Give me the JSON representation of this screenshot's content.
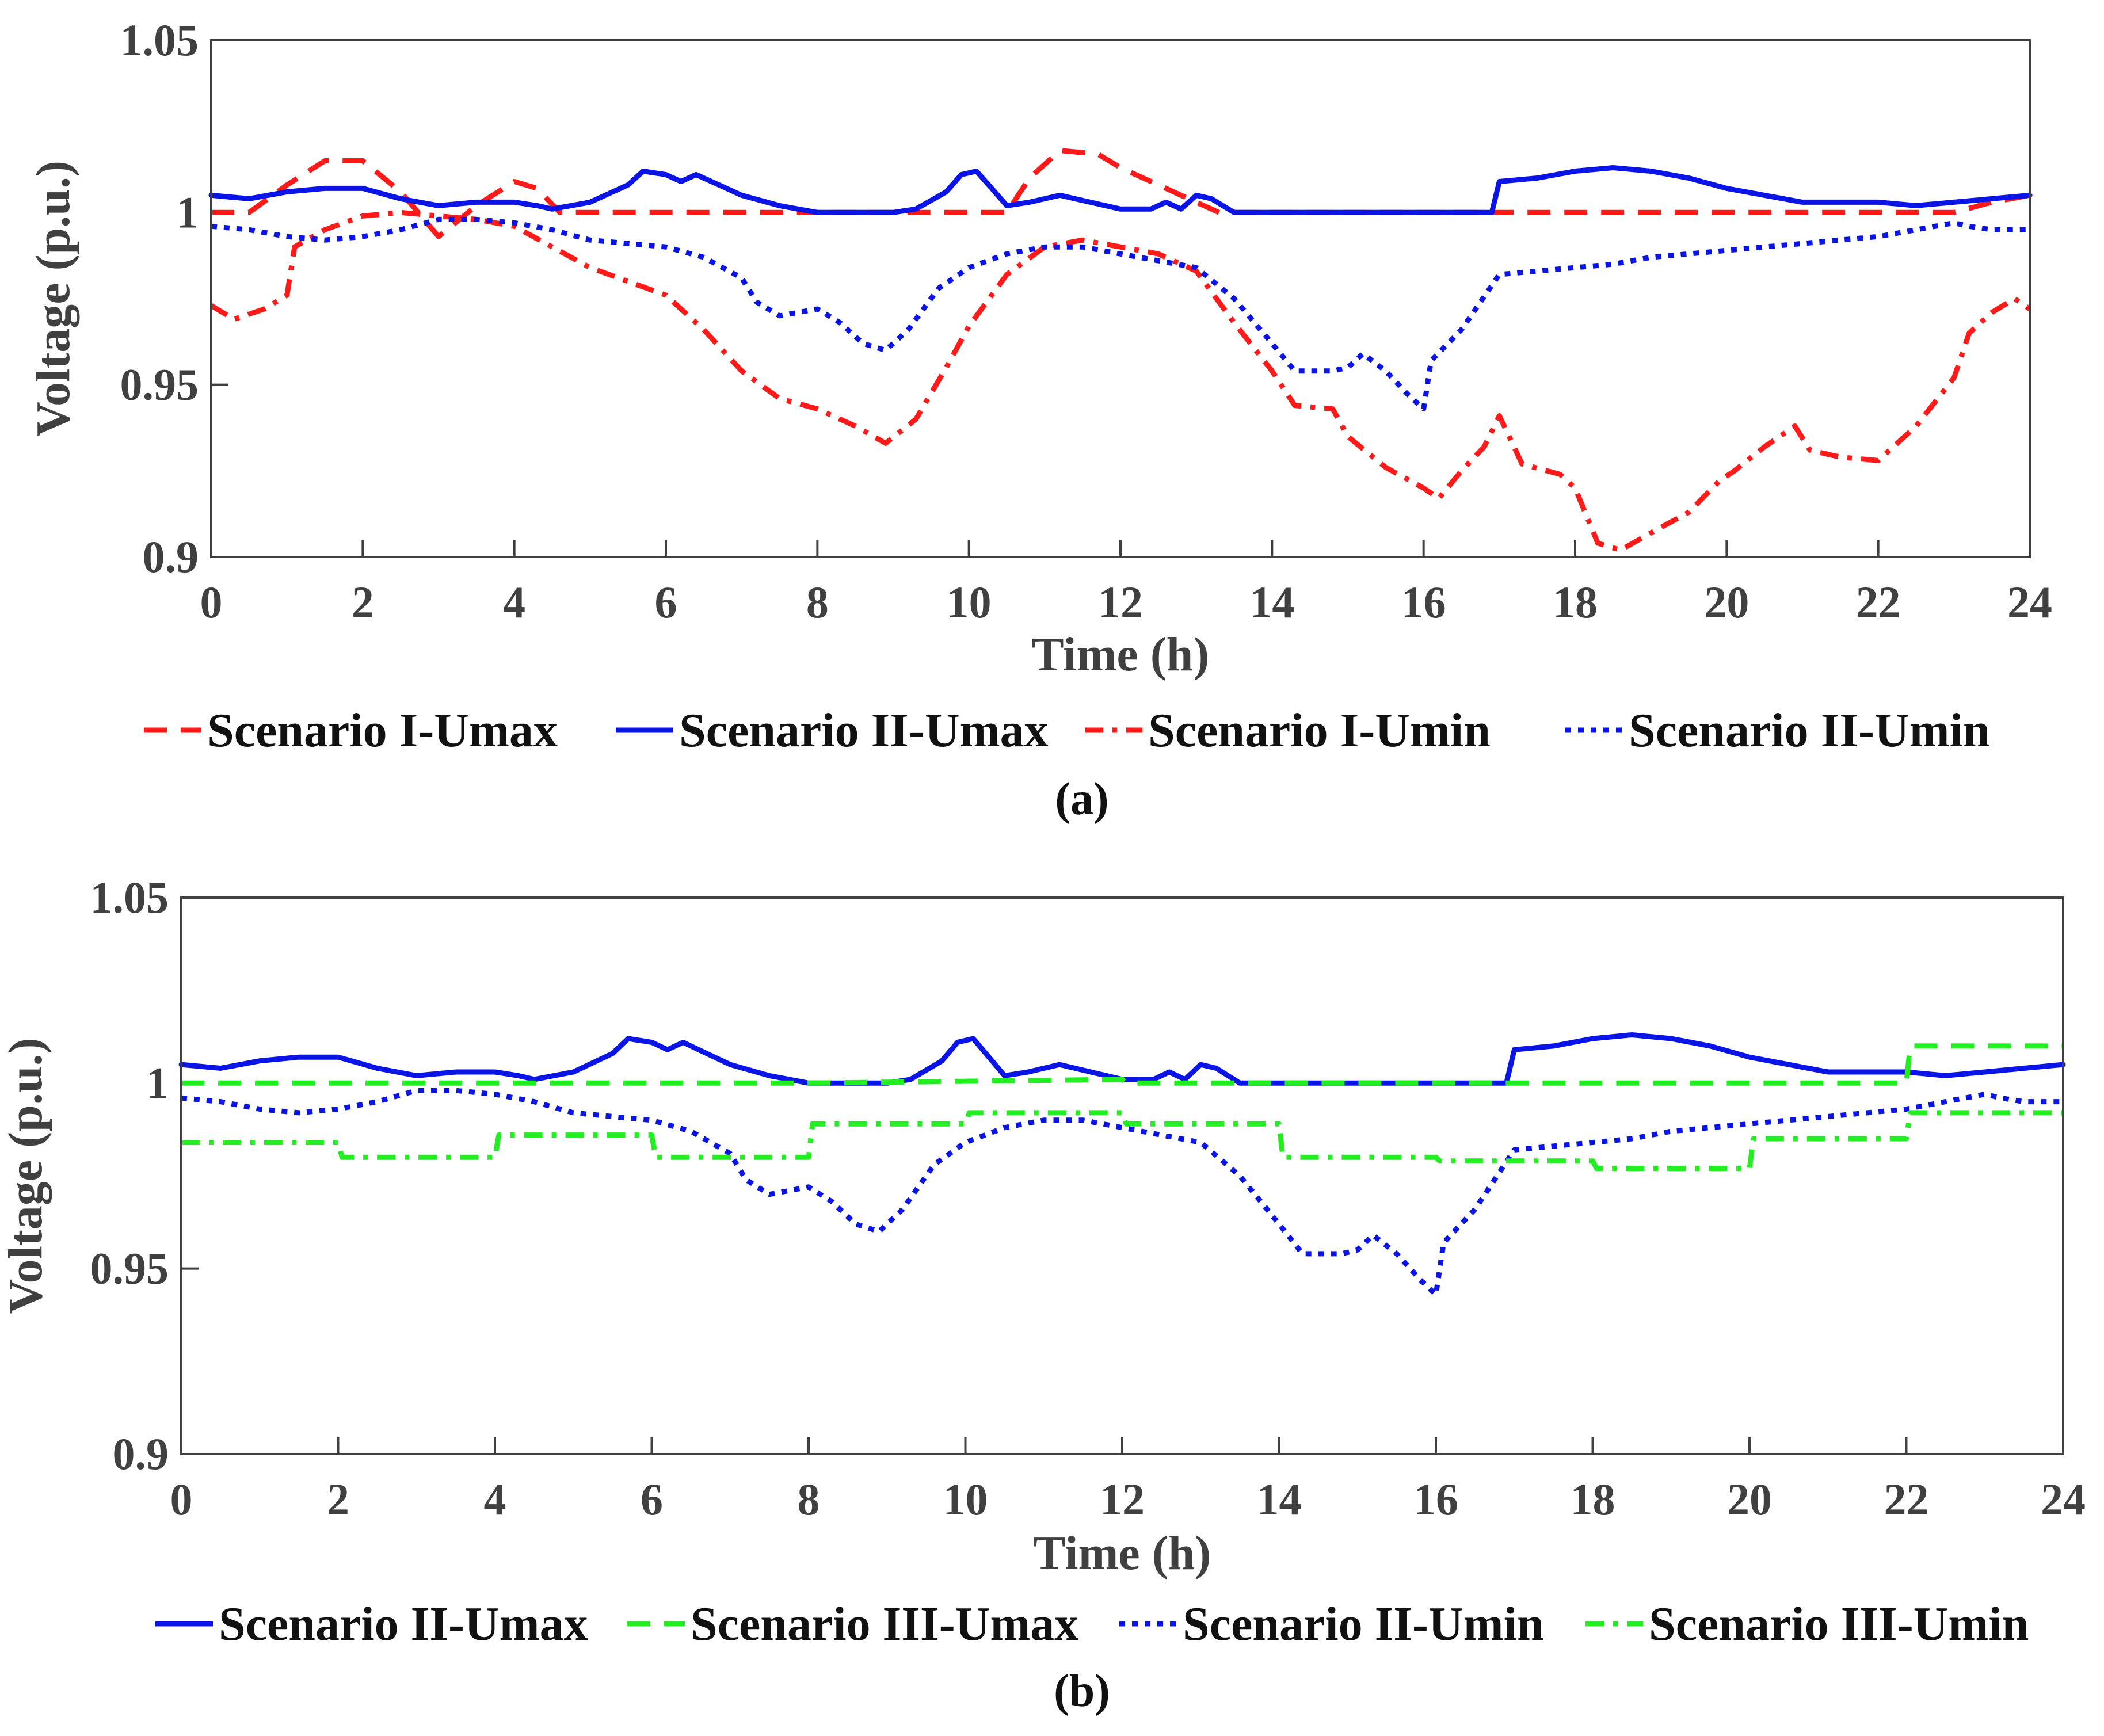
{
  "colors": {
    "red": "#ff1a1a",
    "blue": "#0a14e6",
    "green": "#22ee22",
    "axis": "#404040"
  },
  "chart_data": [
    {
      "id": "a",
      "type": "line",
      "caption": "(a)",
      "xlabel": "Time (h)",
      "ylabel": "Voltage (p.u.)",
      "xlim": [
        0,
        24
      ],
      "ylim": [
        0.9,
        1.05
      ],
      "xticks": [
        "0",
        "2",
        "4",
        "6",
        "8",
        "10",
        "12",
        "14",
        "16",
        "18",
        "20",
        "22",
        "24"
      ],
      "yticks": [
        "0.9",
        "0.95",
        "1",
        "1.05"
      ],
      "legend_position": "bottom",
      "series": [
        {
          "name": "Scenario I-Umax",
          "color": "#ff1a1a",
          "style": "dashed",
          "x": [
            0,
            0.5,
            1,
            1.5,
            2,
            2.5,
            3,
            3.5,
            4,
            4.3,
            4.6,
            5,
            6,
            7,
            8,
            9,
            10,
            10.5,
            10.8,
            11.2,
            11.7,
            12,
            12.5,
            13,
            13.3,
            14,
            16,
            18,
            20,
            22,
            23,
            23.5,
            24
          ],
          "y": [
            1.0,
            1.0,
            1.008,
            1.015,
            1.015,
            1.006,
            0.993,
            1.002,
            1.009,
            1.007,
            1.0,
            1.0,
            1.0,
            1.0,
            1.0,
            1.0,
            1.0,
            1.0,
            1.01,
            1.018,
            1.017,
            1.013,
            1.008,
            1.003,
            1.0,
            1.0,
            1.0,
            1.0,
            1.0,
            1.0,
            1.0,
            1.003,
            1.005
          ]
        },
        {
          "name": "Scenario II-Umax",
          "color": "#0a14e6",
          "style": "solid",
          "x": [
            0,
            0.5,
            1,
            1.5,
            2,
            2.5,
            3,
            3.5,
            4,
            4.3,
            4.5,
            5,
            5.5,
            5.7,
            6,
            6.2,
            6.4,
            6.7,
            7,
            7.5,
            8,
            8.5,
            9,
            9.3,
            9.7,
            9.9,
            10.1,
            10.3,
            10.5,
            10.8,
            11.2,
            11.6,
            12,
            12.4,
            12.6,
            12.8,
            13,
            13.2,
            13.5,
            14,
            15,
            16,
            16.9,
            17,
            17.5,
            18,
            18.5,
            19,
            19.5,
            20,
            20.5,
            21,
            21.5,
            22,
            22.5,
            23,
            23.5,
            24
          ],
          "y": [
            1.005,
            1.004,
            1.006,
            1.007,
            1.007,
            1.004,
            1.002,
            1.003,
            1.003,
            1.002,
            1.001,
            1.003,
            1.008,
            1.012,
            1.011,
            1.009,
            1.011,
            1.008,
            1.005,
            1.002,
            1.0,
            1.0,
            1.0,
            1.001,
            1.006,
            1.011,
            1.012,
            1.007,
            1.002,
            1.003,
            1.005,
            1.003,
            1.001,
            1.001,
            1.003,
            1.001,
            1.005,
            1.004,
            1.0,
            1.0,
            1.0,
            1.0,
            1.0,
            1.009,
            1.01,
            1.012,
            1.013,
            1.012,
            1.01,
            1.007,
            1.005,
            1.003,
            1.003,
            1.003,
            1.002,
            1.003,
            1.004,
            1.005
          ]
        },
        {
          "name": "Scenario I-Umin",
          "color": "#ff1a1a",
          "style": "dashdot",
          "x": [
            0,
            0.3,
            0.7,
            1,
            1.1,
            1.5,
            2,
            2.5,
            3,
            3.5,
            4,
            4.5,
            5,
            5.5,
            6,
            6.5,
            7,
            7.5,
            8,
            8.5,
            8.9,
            9.3,
            9.7,
            10,
            10.5,
            11,
            11.5,
            12,
            12.5,
            13,
            13.5,
            14,
            14.3,
            14.8,
            15,
            15.5,
            16,
            16.2,
            16.5,
            16.8,
            17,
            17.3,
            17.8,
            18,
            18.3,
            18.6,
            19,
            19.5,
            19.9,
            20.1,
            20.5,
            20.9,
            21.1,
            21.5,
            22,
            22.5,
            23,
            23.2,
            23.5,
            23.8,
            24
          ],
          "y": [
            0.973,
            0.969,
            0.972,
            0.976,
            0.99,
            0.995,
            0.999,
            1.0,
            0.999,
            0.998,
            0.996,
            0.99,
            0.984,
            0.98,
            0.976,
            0.966,
            0.954,
            0.946,
            0.943,
            0.938,
            0.933,
            0.94,
            0.955,
            0.967,
            0.982,
            0.99,
            0.992,
            0.99,
            0.988,
            0.983,
            0.968,
            0.954,
            0.944,
            0.943,
            0.935,
            0.926,
            0.92,
            0.917,
            0.925,
            0.932,
            0.941,
            0.927,
            0.924,
            0.92,
            0.904,
            0.902,
            0.907,
            0.913,
            0.922,
            0.925,
            0.932,
            0.938,
            0.931,
            0.929,
            0.928,
            0.938,
            0.952,
            0.965,
            0.971,
            0.975,
            0.972
          ]
        },
        {
          "name": "Scenario II-Umin",
          "color": "#0a14e6",
          "style": "dotted",
          "x": [
            0,
            0.5,
            1,
            1.5,
            2,
            2.5,
            3,
            3.5,
            4,
            4.5,
            5,
            5.5,
            6,
            6.5,
            7,
            7.2,
            7.5,
            8,
            8.3,
            8.6,
            8.9,
            9.2,
            9.6,
            10,
            10.5,
            11,
            11.5,
            12,
            12.5,
            13,
            13.5,
            14,
            14.3,
            14.8,
            15,
            15.2,
            15.5,
            15.8,
            16,
            16.1,
            16.5,
            17,
            17.5,
            18,
            18.5,
            19,
            20,
            21,
            22,
            22.5,
            23,
            23.2,
            23.5,
            24
          ],
          "y": [
            0.996,
            0.995,
            0.993,
            0.992,
            0.993,
            0.995,
            0.998,
            0.998,
            0.997,
            0.995,
            0.992,
            0.991,
            0.99,
            0.987,
            0.981,
            0.974,
            0.97,
            0.972,
            0.968,
            0.962,
            0.96,
            0.966,
            0.978,
            0.984,
            0.988,
            0.99,
            0.99,
            0.988,
            0.986,
            0.984,
            0.975,
            0.962,
            0.954,
            0.954,
            0.955,
            0.959,
            0.954,
            0.947,
            0.943,
            0.957,
            0.966,
            0.982,
            0.983,
            0.984,
            0.985,
            0.987,
            0.989,
            0.991,
            0.993,
            0.995,
            0.997,
            0.996,
            0.995,
            0.995
          ]
        }
      ]
    },
    {
      "id": "b",
      "type": "line",
      "caption": "(b)",
      "xlabel": "Time (h)",
      "ylabel": "Voltage (p.u.)",
      "xlim": [
        0,
        24
      ],
      "ylim": [
        0.9,
        1.05
      ],
      "xticks": [
        "0",
        "2",
        "4",
        "6",
        "8",
        "10",
        "12",
        "14",
        "16",
        "18",
        "20",
        "22",
        "24"
      ],
      "yticks": [
        "0.9",
        "0.95",
        "1",
        "1.05"
      ],
      "legend_position": "bottom",
      "series": [
        {
          "name": "Scenario II-Umax",
          "color": "#0a14e6",
          "style": "solid",
          "x": [
            0,
            0.5,
            1,
            1.5,
            2,
            2.5,
            3,
            3.5,
            4,
            4.3,
            4.5,
            5,
            5.5,
            5.7,
            6,
            6.2,
            6.4,
            6.7,
            7,
            7.5,
            8,
            8.5,
            9,
            9.3,
            9.7,
            9.9,
            10.1,
            10.3,
            10.5,
            10.8,
            11.2,
            11.6,
            12,
            12.4,
            12.6,
            12.8,
            13,
            13.2,
            13.5,
            14,
            15,
            16,
            16.9,
            17,
            17.5,
            18,
            18.5,
            19,
            19.5,
            20,
            20.5,
            21,
            21.5,
            22,
            22.5,
            23,
            23.5,
            24
          ],
          "y": [
            1.005,
            1.004,
            1.006,
            1.007,
            1.007,
            1.004,
            1.002,
            1.003,
            1.003,
            1.002,
            1.001,
            1.003,
            1.008,
            1.012,
            1.011,
            1.009,
            1.011,
            1.008,
            1.005,
            1.002,
            1.0,
            1.0,
            1.0,
            1.001,
            1.006,
            1.011,
            1.012,
            1.007,
            1.002,
            1.003,
            1.005,
            1.003,
            1.001,
            1.001,
            1.003,
            1.001,
            1.005,
            1.004,
            1.0,
            1.0,
            1.0,
            1.0,
            1.0,
            1.009,
            1.01,
            1.012,
            1.013,
            1.012,
            1.01,
            1.007,
            1.005,
            1.003,
            1.003,
            1.003,
            1.002,
            1.003,
            1.004,
            1.005
          ]
        },
        {
          "name": "Scenario III-Umax",
          "color": "#22ee22",
          "style": "dashed",
          "x": [
            0,
            8,
            8.05,
            12,
            12.05,
            22,
            22.05,
            24
          ],
          "y": [
            1.0,
            1.0,
            1.0,
            1.001,
            1.0,
            1.0,
            1.01,
            1.01
          ]
        },
        {
          "name": "Scenario II-Umin",
          "color": "#0a14e6",
          "style": "dotted",
          "x": [
            0,
            0.5,
            1,
            1.5,
            2,
            2.5,
            3,
            3.5,
            4,
            4.5,
            5,
            5.5,
            6,
            6.5,
            7,
            7.2,
            7.5,
            8,
            8.3,
            8.6,
            8.9,
            9.2,
            9.6,
            10,
            10.5,
            11,
            11.5,
            12,
            12.5,
            13,
            13.5,
            14,
            14.3,
            14.8,
            15,
            15.2,
            15.5,
            15.8,
            16,
            16.1,
            16.5,
            17,
            17.5,
            18,
            18.5,
            19,
            20,
            21,
            22,
            22.5,
            23,
            23.2,
            23.5,
            24
          ],
          "y": [
            0.996,
            0.995,
            0.993,
            0.992,
            0.993,
            0.995,
            0.998,
            0.998,
            0.997,
            0.995,
            0.992,
            0.991,
            0.99,
            0.987,
            0.981,
            0.974,
            0.97,
            0.972,
            0.968,
            0.962,
            0.96,
            0.966,
            0.978,
            0.984,
            0.988,
            0.99,
            0.99,
            0.988,
            0.986,
            0.984,
            0.975,
            0.962,
            0.954,
            0.954,
            0.955,
            0.959,
            0.954,
            0.947,
            0.943,
            0.957,
            0.966,
            0.982,
            0.983,
            0.984,
            0.985,
            0.987,
            0.989,
            0.991,
            0.993,
            0.995,
            0.997,
            0.996,
            0.995,
            0.995
          ]
        },
        {
          "name": "Scenario III-Umin",
          "color": "#22ee22",
          "style": "dashdot",
          "x": [
            0,
            2,
            2.05,
            4,
            4.05,
            6,
            6.05,
            8,
            8.05,
            10,
            10.05,
            12,
            12.05,
            14,
            14.05,
            16,
            16.05,
            18,
            18.05,
            20,
            20.05,
            22,
            22.05,
            24
          ],
          "y": [
            0.984,
            0.984,
            0.98,
            0.98,
            0.986,
            0.986,
            0.98,
            0.98,
            0.989,
            0.989,
            0.992,
            0.992,
            0.989,
            0.989,
            0.98,
            0.98,
            0.979,
            0.979,
            0.977,
            0.977,
            0.985,
            0.985,
            0.992,
            0.992
          ]
        }
      ]
    }
  ]
}
